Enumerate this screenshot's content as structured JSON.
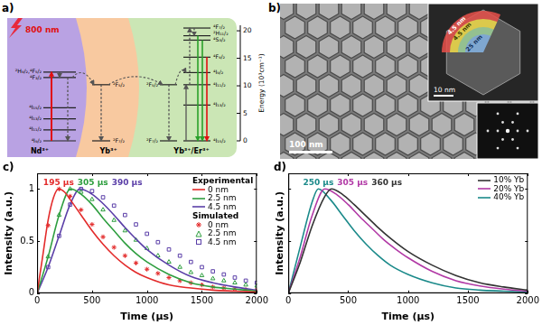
{
  "figure": {
    "panel_a": {
      "label": "a)",
      "excitation": "800 nm",
      "energy_axis": {
        "title": "Energy (10³cm⁻¹)",
        "ylim": [
          0,
          21
        ],
        "yticks": [
          0,
          5,
          10,
          15,
          20
        ]
      },
      "regions": [
        {
          "name": "Nd³⁺",
          "color": "#b9a2e3",
          "columns": [
            {
              "levels": [
                {
                  "label": "²H₉/₂,⁴F₅/₂",
                  "energy": 12.5
                },
                {
                  "label": "⁴F₃/₂",
                  "energy": 11.5
                },
                {
                  "label": "⁴I₁₅/₂",
                  "energy": 6
                },
                {
                  "label": "⁴I₁₃/₂",
                  "energy": 4
                },
                {
                  "label": "⁴I₁₁/₂",
                  "energy": 2
                },
                {
                  "label": "⁴I₉/₂",
                  "energy": 0
                }
              ]
            }
          ]
        },
        {
          "name": "Yb³⁺",
          "color": "#f8c9a0",
          "columns": [
            {
              "levels": [
                {
                  "label": "²F₅/₂",
                  "energy": 10.2
                },
                {
                  "label": "²F₇/₂",
                  "energy": 0
                }
              ]
            }
          ]
        },
        {
          "name": "Yb³⁺/Er³⁺",
          "color": "#cbe6b5",
          "columns": [
            {
              "levels": [
                {
                  "label": "²F₅/₂",
                  "energy": 10.2
                },
                {
                  "label": "²F₇/₂",
                  "energy": 0
                }
              ]
            },
            {
              "levels": [
                {
                  "label": "⁴F₇/₂",
                  "energy": 20.5
                },
                {
                  "label": "²H₁₁/₂",
                  "energy": 19.1
                },
                {
                  "label": "⁴S₃/₂",
                  "energy": 18.3
                },
                {
                  "label": "⁴F₉/₂",
                  "energy": 15.2
                },
                {
                  "label": "⁴I₉/₂",
                  "energy": 12.4
                },
                {
                  "label": "⁴I₁₁/₂",
                  "energy": 10.2
                },
                {
                  "label": "⁴I₁₃/₂",
                  "energy": 6.5
                },
                {
                  "label": "⁴I₁₅/₂",
                  "energy": 0
                }
              ]
            }
          ]
        }
      ]
    },
    "panel_b": {
      "label": "b)",
      "scale_bar": "100 nm",
      "inset_scale_bar": "10 nm",
      "shell_labels": [
        "4.5 nm",
        "4.5 nm",
        "25 nm"
      ]
    }
  },
  "chart_data": [
    {
      "panel": "c)",
      "type": "line",
      "x_label": "Time (µs)",
      "y_label": "Intensity (a.u.)",
      "xlim": [
        0,
        2000
      ],
      "xticks": [
        0,
        500,
        1000,
        1500,
        2000
      ],
      "ylim": [
        0,
        1.15
      ],
      "yticks": [
        0,
        0.5,
        1
      ],
      "grid": false,
      "legend": "top-right",
      "annotations": [
        {
          "text": "195 µs",
          "x": 195,
          "y": 1,
          "color": "#e32b2b"
        },
        {
          "text": "305 µs",
          "x": 305,
          "y": 1,
          "color": "#2e9e3f"
        },
        {
          "text": "390 µs",
          "x": 390,
          "y": 1,
          "color": "#5b3fa8"
        }
      ],
      "series": [
        {
          "name": "0 nm",
          "group": "Experimental",
          "color": "#e32b2b",
          "line_style": "solid",
          "marker": "none",
          "x": [
            0,
            50,
            100,
            150,
            195,
            250,
            300,
            400,
            500,
            600,
            700,
            800,
            900,
            1000,
            1200,
            1400,
            1600,
            1800,
            2000
          ],
          "values": [
            0,
            0.35,
            0.7,
            0.92,
            1,
            0.97,
            0.9,
            0.75,
            0.6,
            0.47,
            0.36,
            0.27,
            0.2,
            0.15,
            0.08,
            0.05,
            0.03,
            0.02,
            0.01
          ]
        },
        {
          "name": "2.5 nm",
          "group": "Experimental",
          "color": "#2e9e3f",
          "line_style": "solid",
          "marker": "none",
          "x": [
            0,
            100,
            200,
            305,
            400,
            500,
            600,
            700,
            800,
            900,
            1000,
            1200,
            1400,
            1600,
            1800,
            2000
          ],
          "values": [
            0,
            0.35,
            0.75,
            1,
            0.95,
            0.85,
            0.72,
            0.6,
            0.48,
            0.38,
            0.3,
            0.18,
            0.1,
            0.06,
            0.04,
            0.02
          ]
        },
        {
          "name": "4.5 nm",
          "group": "Experimental",
          "color": "#5b3fa8",
          "line_style": "solid",
          "marker": "none",
          "x": [
            0,
            100,
            200,
            300,
            390,
            500,
            600,
            700,
            800,
            900,
            1000,
            1200,
            1400,
            1600,
            1800,
            2000
          ],
          "values": [
            0,
            0.25,
            0.55,
            0.85,
            1,
            0.95,
            0.86,
            0.75,
            0.63,
            0.52,
            0.42,
            0.27,
            0.16,
            0.1,
            0.06,
            0.03
          ]
        },
        {
          "name": "0 nm",
          "group": "Simulated",
          "color": "#e32b2b",
          "line_style": "none",
          "marker": "star",
          "x": [
            0,
            100,
            200,
            300,
            400,
            500,
            600,
            700,
            800,
            900,
            1000,
            1100,
            1200,
            1300,
            1400,
            1500,
            1600,
            1700,
            1800,
            1900,
            2000
          ],
          "values": [
            0,
            0.65,
            1,
            0.93,
            0.8,
            0.66,
            0.54,
            0.44,
            0.36,
            0.29,
            0.23,
            0.19,
            0.15,
            0.12,
            0.1,
            0.08,
            0.06,
            0.05,
            0.04,
            0.035,
            0.03
          ]
        },
        {
          "name": "2.5 nm",
          "group": "Simulated",
          "color": "#2e9e3f",
          "line_style": "none",
          "marker": "triangle",
          "x": [
            0,
            100,
            200,
            300,
            400,
            500,
            600,
            700,
            800,
            900,
            1000,
            1100,
            1200,
            1300,
            1400,
            1500,
            1600,
            1700,
            1800,
            1900,
            2000
          ],
          "values": [
            0,
            0.35,
            0.75,
            1,
            0.97,
            0.9,
            0.8,
            0.7,
            0.6,
            0.51,
            0.43,
            0.36,
            0.3,
            0.25,
            0.2,
            0.17,
            0.14,
            0.12,
            0.1,
            0.08,
            0.07
          ]
        },
        {
          "name": "4.5 nm",
          "group": "Simulated",
          "color": "#5b3fa8",
          "line_style": "none",
          "marker": "square",
          "x": [
            0,
            100,
            200,
            300,
            400,
            500,
            600,
            700,
            800,
            900,
            1000,
            1100,
            1200,
            1300,
            1400,
            1500,
            1600,
            1700,
            1800,
            1900,
            2000
          ],
          "values": [
            0,
            0.25,
            0.55,
            0.85,
            1,
            0.98,
            0.92,
            0.84,
            0.75,
            0.66,
            0.57,
            0.49,
            0.42,
            0.36,
            0.3,
            0.25,
            0.21,
            0.18,
            0.15,
            0.12,
            0.1
          ]
        }
      ]
    },
    {
      "panel": "d)",
      "type": "line",
      "x_label": "Time (µs)",
      "y_label": "Intensity (a.u.)",
      "xlim": [
        0,
        2000
      ],
      "xticks": [
        0,
        500,
        1000,
        1500,
        2000
      ],
      "ylim": [
        0,
        1.15
      ],
      "yticks": [
        0,
        0.5,
        1
      ],
      "tick_labels": "x",
      "grid": false,
      "legend": "top-right",
      "annotations": [
        {
          "text": "250 µs",
          "x": 250,
          "y": 1,
          "color": "#1b8a8a"
        },
        {
          "text": "305 µs",
          "x": 305,
          "y": 1,
          "color": "#b23aa6"
        },
        {
          "text": "360 µs",
          "x": 360,
          "y": 1,
          "color": "#333333"
        }
      ],
      "series": [
        {
          "name": "10% Yb",
          "color": "#333333",
          "line_style": "solid",
          "marker": "none",
          "x": [
            0,
            100,
            200,
            300,
            360,
            450,
            550,
            650,
            750,
            850,
            1000,
            1200,
            1400,
            1600,
            1800,
            2000
          ],
          "values": [
            0,
            0.3,
            0.65,
            0.92,
            1,
            0.95,
            0.85,
            0.74,
            0.63,
            0.53,
            0.4,
            0.27,
            0.17,
            0.1,
            0.06,
            0.03
          ]
        },
        {
          "name": "20% Yb",
          "color": "#b23aa6",
          "line_style": "solid",
          "marker": "none",
          "x": [
            0,
            100,
            200,
            305,
            400,
            500,
            600,
            700,
            800,
            900,
            1000,
            1200,
            1400,
            1600,
            1800,
            2000
          ],
          "values": [
            0,
            0.35,
            0.75,
            1,
            0.95,
            0.85,
            0.73,
            0.62,
            0.51,
            0.42,
            0.34,
            0.21,
            0.12,
            0.07,
            0.04,
            0.02
          ]
        },
        {
          "name": "40% Yb",
          "color": "#1b8a8a",
          "line_style": "solid",
          "marker": "none",
          "x": [
            0,
            100,
            200,
            250,
            350,
            450,
            550,
            650,
            750,
            850,
            1000,
            1200,
            1400,
            1600,
            1800,
            2000
          ],
          "values": [
            0,
            0.45,
            0.88,
            1,
            0.9,
            0.75,
            0.6,
            0.47,
            0.36,
            0.27,
            0.18,
            0.1,
            0.05,
            0.03,
            0.02,
            0.01
          ]
        }
      ]
    }
  ]
}
